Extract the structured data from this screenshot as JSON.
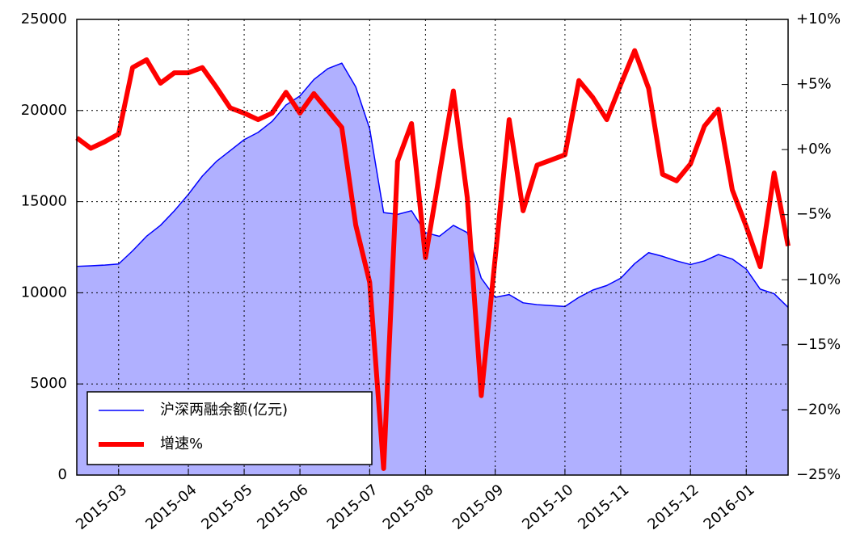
{
  "chart_data": {
    "type": "line",
    "categories": [
      null,
      null,
      null,
      "2015-03",
      null,
      null,
      null,
      null,
      "2015-04",
      null,
      null,
      null,
      "2015-05",
      null,
      null,
      null,
      "2015-06",
      null,
      null,
      null,
      null,
      "2015-07",
      null,
      null,
      null,
      "2015-08",
      null,
      null,
      null,
      null,
      "2015-09",
      null,
      null,
      null,
      null,
      "2015-10",
      null,
      null,
      null,
      "2015-11",
      null,
      null,
      null,
      null,
      "2015-12",
      null,
      null,
      null,
      "2016-01",
      null,
      null,
      null
    ],
    "series": [
      {
        "name": "沪深两融余额(亿元)",
        "color": "#0000ff",
        "fill_color": "#b0b0ff",
        "values": [
          11450,
          11480,
          11520,
          11580,
          12300,
          13100,
          13700,
          14500,
          15400,
          16400,
          17200,
          17800,
          18400,
          18800,
          19400,
          20300,
          20800,
          21700,
          22300,
          22600,
          21300,
          19000,
          14400,
          14300,
          14500,
          13300,
          13100,
          13700,
          13300,
          10800,
          9750,
          9900,
          9450,
          9350,
          9300,
          9250,
          9750,
          10150,
          10400,
          10800,
          11600,
          12200,
          12000,
          11750,
          11550,
          11750,
          12100,
          11850,
          11300,
          10200,
          9950,
          9200
        ]
      },
      {
        "name": "增速%",
        "color": "#ff0000",
        "axis": "y2",
        "values": [
          0.9,
          0.1,
          0.6,
          1.2,
          6.3,
          6.9,
          5.1,
          5.9,
          5.9,
          6.3,
          4.8,
          3.2,
          2.8,
          2.3,
          2.8,
          4.4,
          2.8,
          4.3,
          3.0,
          1.7,
          -5.8,
          -10.2,
          -24.5,
          -0.9,
          2.0,
          -8.3,
          -1.9,
          4.5,
          -3.7,
          -18.9,
          -8.3,
          2.3,
          -4.7,
          -1.2,
          -0.8,
          -0.4,
          5.3,
          4.0,
          2.3,
          5.0,
          7.6,
          4.7,
          -1.9,
          -2.4,
          -1.1,
          1.8,
          3.1,
          -3.1,
          -5.9,
          -9.0,
          -1.8,
          -7.4
        ]
      }
    ],
    "ylim": [
      0,
      25000
    ],
    "yticks": [
      0,
      5000,
      10000,
      15000,
      20000,
      25000
    ],
    "y2lim": [
      -25,
      10
    ],
    "y2ticks": [
      {
        "value": -25,
        "label": "−25%"
      },
      {
        "value": -20,
        "label": "−20%"
      },
      {
        "value": -15,
        "label": "−15%"
      },
      {
        "value": -10,
        "label": "−10%"
      },
      {
        "value": -5,
        "label": "−5%"
      },
      {
        "value": 0,
        "label": "+0%"
      },
      {
        "value": 5,
        "label": "+5%"
      },
      {
        "value": 10,
        "label": "+10%"
      }
    ],
    "grid": true,
    "legend": "lower left"
  }
}
